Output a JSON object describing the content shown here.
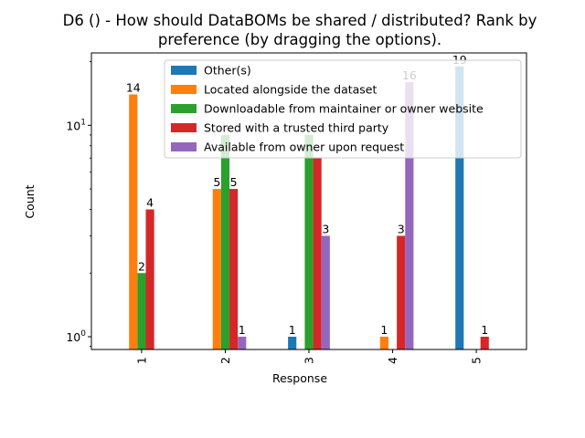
{
  "chart_data": {
    "type": "bar",
    "title_line1": "D6 () - How should DataBOMs be shared / distributed? Rank by",
    "title_line2": "preference (by dragging the options).",
    "xlabel": "Response",
    "ylabel": "Count",
    "yscale": "log",
    "ylim": [
      0.87,
      22
    ],
    "yticks": [
      {
        "value": 1,
        "base": "10",
        "exp": "0"
      },
      {
        "value": 10,
        "base": "10",
        "exp": "1"
      }
    ],
    "categories": [
      "1",
      "2",
      "3",
      "4",
      "5"
    ],
    "legend_position": "upper right",
    "series": [
      {
        "name": "Other(s)",
        "color": "#1f77b4",
        "values": [
          null,
          null,
          1,
          null,
          19
        ]
      },
      {
        "name": "Located alongside the dataset",
        "color": "#ff7f0e",
        "values": [
          14,
          5,
          null,
          1,
          null
        ]
      },
      {
        "name": "Downloadable from maintainer or owner website",
        "color": "#2ca02c",
        "values": [
          2,
          9,
          9,
          null,
          null
        ]
      },
      {
        "name": "Stored with a trusted third party",
        "color": "#d62728",
        "values": [
          4,
          5,
          7,
          3,
          1
        ]
      },
      {
        "name": "Available from owner upon request",
        "color": "#9467bd",
        "values": [
          null,
          1,
          3,
          16,
          null
        ]
      }
    ],
    "data_labels": [
      {
        "series": 1,
        "category": 0,
        "text": "14"
      },
      {
        "series": 2,
        "category": 0,
        "text": "2"
      },
      {
        "series": 3,
        "category": 0,
        "text": "4"
      },
      {
        "series": 1,
        "category": 1,
        "text": "5"
      },
      {
        "series": 3,
        "category": 1,
        "text": "5"
      },
      {
        "series": 4,
        "category": 1,
        "text": "1"
      },
      {
        "series": 0,
        "category": 2,
        "text": "1"
      },
      {
        "series": 4,
        "category": 2,
        "text": "3"
      },
      {
        "series": 1,
        "category": 3,
        "text": "1"
      },
      {
        "series": 3,
        "category": 3,
        "text": "3"
      },
      {
        "series": 4,
        "category": 3,
        "text": "16"
      },
      {
        "series": 0,
        "category": 4,
        "text": "19"
      },
      {
        "series": 3,
        "category": 4,
        "text": "1"
      }
    ]
  }
}
